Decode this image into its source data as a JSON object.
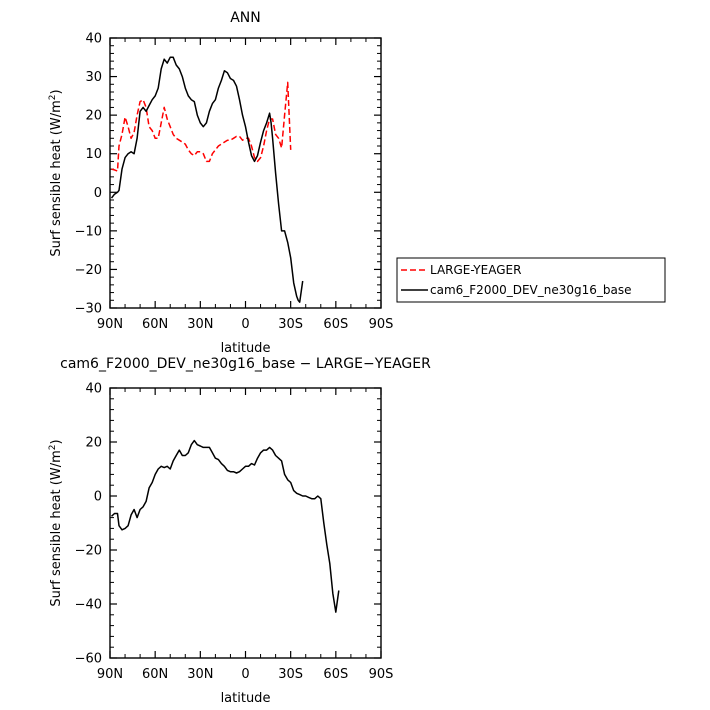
{
  "chart_data": [
    {
      "type": "line",
      "title": "ANN",
      "xlabel": "latitude",
      "ylabel": "Surf sensible heat (W/m",
      "ylabel_sup": "2",
      "ylabel_close": ")",
      "xlim": [
        90,
        -90
      ],
      "ylim": [
        -30,
        40
      ],
      "x_ticks": [
        90,
        60,
        30,
        0,
        -30,
        -60,
        -90
      ],
      "x_tick_labels": [
        "90N",
        "60N",
        "30N",
        "0",
        "30S",
        "60S",
        "90S"
      ],
      "y_ticks": [
        -30,
        -20,
        -10,
        0,
        10,
        20,
        30,
        40
      ],
      "y_tick_labels": [
        "−30",
        "−20",
        "−10",
        "0",
        "10",
        "20",
        "30",
        "40"
      ],
      "grid": false,
      "legend_placement": "right",
      "series": [
        {
          "name": "LARGE-YEAGER",
          "color": "#ff0000",
          "dash": "dashed",
          "points": [
            [
              89,
              6
            ],
            [
              87,
              5.8
            ],
            [
              85,
              5.5
            ],
            [
              84,
              12
            ],
            [
              82,
              15
            ],
            [
              80,
              19.5
            ],
            [
              78,
              17
            ],
            [
              76,
              14
            ],
            [
              74,
              15.5
            ],
            [
              72,
              20
            ],
            [
              70,
              23.5
            ],
            [
              68,
              24
            ],
            [
              66,
              22
            ],
            [
              64,
              17
            ],
            [
              62,
              16
            ],
            [
              60,
              14
            ],
            [
              58,
              14
            ],
            [
              56,
              18
            ],
            [
              54,
              22
            ],
            [
              52,
              19
            ],
            [
              50,
              17
            ],
            [
              48,
              15
            ],
            [
              46,
              14
            ],
            [
              44,
              13.5
            ],
            [
              42,
              13
            ],
            [
              40,
              12.5
            ],
            [
              38,
              11
            ],
            [
              36,
              10
            ],
            [
              34,
              9.5
            ],
            [
              32,
              10.5
            ],
            [
              30,
              10.5
            ],
            [
              28,
              10
            ],
            [
              26,
              8
            ],
            [
              24,
              8
            ],
            [
              22,
              10
            ],
            [
              20,
              11
            ],
            [
              18,
              12
            ],
            [
              16,
              12.5
            ],
            [
              14,
              13
            ],
            [
              12,
              13.5
            ],
            [
              10,
              13.5
            ],
            [
              8,
              14
            ],
            [
              6,
              14.5
            ],
            [
              4,
              14.5
            ],
            [
              2,
              13.5
            ],
            [
              0,
              14
            ],
            [
              -2,
              14
            ],
            [
              -4,
              12
            ],
            [
              -6,
              9
            ],
            [
              -8,
              8
            ],
            [
              -10,
              9
            ],
            [
              -12,
              12
            ],
            [
              -14,
              16
            ],
            [
              -16,
              19
            ],
            [
              -18,
              19
            ],
            [
              -20,
              15
            ],
            [
              -22,
              14
            ],
            [
              -24,
              11.5
            ],
            [
              -26,
              20
            ],
            [
              -28,
              28.5
            ],
            [
              -30,
              11
            ]
          ]
        },
        {
          "name": "cam6_F2000_DEV_ne30g16_base",
          "color": "#000000",
          "dash": "solid",
          "points": [
            [
              89,
              -1.5
            ],
            [
              87,
              -0.5
            ],
            [
              85,
              0
            ],
            [
              84,
              0.5
            ],
            [
              82,
              6
            ],
            [
              80,
              9
            ],
            [
              78,
              10
            ],
            [
              76,
              10.5
            ],
            [
              74,
              10
            ],
            [
              72,
              14
            ],
            [
              70,
              21
            ],
            [
              68,
              22
            ],
            [
              66,
              21
            ],
            [
              64,
              22.5
            ],
            [
              62,
              24
            ],
            [
              60,
              25
            ],
            [
              58,
              27
            ],
            [
              56,
              32
            ],
            [
              54,
              34.5
            ],
            [
              52,
              33.5
            ],
            [
              50,
              35
            ],
            [
              48,
              35
            ],
            [
              46,
              33
            ],
            [
              44,
              32
            ],
            [
              42,
              30
            ],
            [
              40,
              27
            ],
            [
              38,
              25
            ],
            [
              36,
              24
            ],
            [
              34,
              23.5
            ],
            [
              32,
              20
            ],
            [
              30,
              18
            ],
            [
              28,
              17
            ],
            [
              26,
              18
            ],
            [
              24,
              21
            ],
            [
              22,
              23
            ],
            [
              20,
              24
            ],
            [
              18,
              27
            ],
            [
              16,
              29
            ],
            [
              14,
              31.5
            ],
            [
              12,
              31
            ],
            [
              10,
              29.5
            ],
            [
              8,
              29
            ],
            [
              6,
              27.5
            ],
            [
              4,
              24
            ],
            [
              2,
              20
            ],
            [
              0,
              17
            ],
            [
              -2,
              13
            ],
            [
              -4,
              9.5
            ],
            [
              -6,
              8
            ],
            [
              -8,
              9.5
            ],
            [
              -10,
              13
            ],
            [
              -12,
              16
            ],
            [
              -14,
              18
            ],
            [
              -16,
              20.5
            ],
            [
              -17,
              18
            ],
            [
              -18,
              14
            ],
            [
              -20,
              5
            ],
            [
              -22,
              -3
            ],
            [
              -24,
              -10
            ],
            [
              -26,
              -10
            ],
            [
              -28,
              -13
            ],
            [
              -30,
              -17
            ],
            [
              -32,
              -23.5
            ],
            [
              -34,
              -27
            ],
            [
              -35,
              -28
            ],
            [
              -36,
              -28.5
            ],
            [
              -38,
              -23
            ]
          ]
        }
      ]
    },
    {
      "type": "line",
      "title": "cam6_F2000_DEV_ne30g16_base − LARGE−YEAGER",
      "xlabel": "latitude",
      "ylabel": "Surf sensible heat (W/m",
      "ylabel_sup": "2",
      "ylabel_close": ")",
      "xlim": [
        90,
        -90
      ],
      "ylim": [
        -60,
        40
      ],
      "x_ticks": [
        90,
        60,
        30,
        0,
        -30,
        -60,
        -90
      ],
      "x_tick_labels": [
        "90N",
        "60N",
        "30N",
        "0",
        "30S",
        "60S",
        "90S"
      ],
      "y_ticks": [
        -60,
        -40,
        -20,
        0,
        20,
        40
      ],
      "y_tick_labels": [
        "−60",
        "−40",
        "−20",
        "0",
        "20",
        "40"
      ],
      "grid": false,
      "series": [
        {
          "color": "#000000",
          "dash": "solid",
          "points": [
            [
              89,
              -7.5
            ],
            [
              87,
              -6.5
            ],
            [
              85,
              -6.5
            ],
            [
              84,
              -11
            ],
            [
              82,
              -12.5
            ],
            [
              80,
              -12
            ],
            [
              78,
              -11
            ],
            [
              76,
              -7
            ],
            [
              74,
              -5
            ],
            [
              72,
              -8
            ],
            [
              70,
              -5
            ],
            [
              68,
              -4
            ],
            [
              66,
              -2
            ],
            [
              64,
              3
            ],
            [
              62,
              5
            ],
            [
              60,
              8
            ],
            [
              58,
              10
            ],
            [
              56,
              11
            ],
            [
              54,
              10.5
            ],
            [
              52,
              11
            ],
            [
              50,
              10
            ],
            [
              48,
              13
            ],
            [
              46,
              15
            ],
            [
              44,
              17
            ],
            [
              42,
              15
            ],
            [
              40,
              15
            ],
            [
              38,
              16
            ],
            [
              36,
              19
            ],
            [
              34,
              20.5
            ],
            [
              32,
              19
            ],
            [
              30,
              18.5
            ],
            [
              28,
              18
            ],
            [
              26,
              18
            ],
            [
              24,
              18
            ],
            [
              22,
              16
            ],
            [
              20,
              14
            ],
            [
              18,
              13.5
            ],
            [
              16,
              12
            ],
            [
              14,
              11
            ],
            [
              12,
              9.5
            ],
            [
              10,
              9
            ],
            [
              8,
              9
            ],
            [
              6,
              8.5
            ],
            [
              4,
              9
            ],
            [
              2,
              10
            ],
            [
              0,
              11
            ],
            [
              -2,
              11
            ],
            [
              -4,
              12
            ],
            [
              -6,
              11.5
            ],
            [
              -8,
              14
            ],
            [
              -10,
              16
            ],
            [
              -12,
              17
            ],
            [
              -14,
              17
            ],
            [
              -16,
              18
            ],
            [
              -18,
              17
            ],
            [
              -20,
              15
            ],
            [
              -22,
              14
            ],
            [
              -24,
              13
            ],
            [
              -26,
              8
            ],
            [
              -28,
              6
            ],
            [
              -30,
              5
            ],
            [
              -32,
              2
            ],
            [
              -34,
              1
            ],
            [
              -36,
              0.5
            ],
            [
              -38,
              0
            ],
            [
              -40,
              0
            ],
            [
              -42,
              -0.5
            ],
            [
              -44,
              -1
            ],
            [
              -46,
              -1
            ],
            [
              -48,
              0
            ],
            [
              -50,
              -1
            ],
            [
              -52,
              -10
            ],
            [
              -54,
              -18
            ],
            [
              -56,
              -25
            ],
            [
              -58,
              -36
            ],
            [
              -60,
              -43
            ],
            [
              -62,
              -35
            ]
          ]
        }
      ]
    }
  ]
}
